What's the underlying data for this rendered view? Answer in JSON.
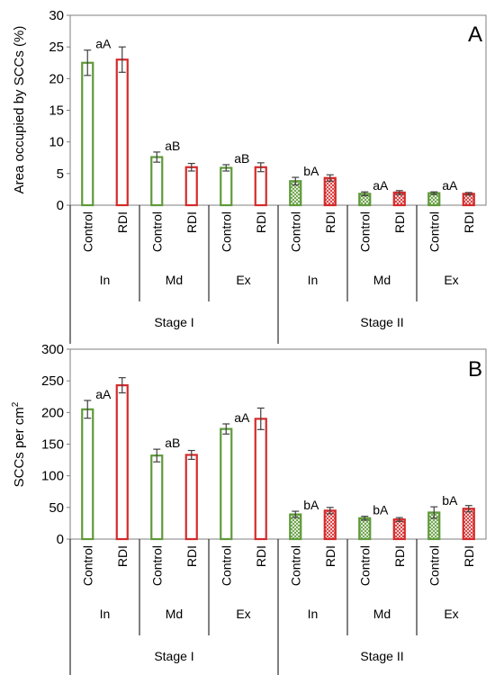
{
  "chart_data": [
    {
      "type": "bar",
      "panel_label": "A",
      "ylabel": "Area occupied by SCCs (%)",
      "ylim": [
        0,
        30
      ],
      "yticks": [
        0,
        5,
        10,
        15,
        20,
        25,
        30
      ],
      "categories": [
        "Control",
        "RDI",
        "Control",
        "RDI",
        "Control",
        "RDI",
        "Control",
        "RDI",
        "Control",
        "RDI",
        "Control",
        "RDI"
      ],
      "positions": [
        "In",
        "Md",
        "Ex",
        "In",
        "Md",
        "Ex"
      ],
      "stages": [
        "Stage I",
        "Stage II"
      ],
      "values": [
        22.5,
        23.0,
        7.6,
        6.0,
        5.9,
        6.0,
        3.8,
        4.3,
        1.8,
        2.0,
        1.9,
        1.8
      ],
      "errors": [
        2.0,
        2.0,
        0.8,
        0.6,
        0.5,
        0.7,
        0.6,
        0.5,
        0.3,
        0.3,
        0.2,
        0.2
      ],
      "annotations": [
        "aA",
        "",
        "aB",
        "",
        "aB",
        "",
        "bA",
        "",
        "aA",
        "",
        "aA",
        ""
      ],
      "treatment_colors": {
        "Control": "#5f9a3a",
        "RDI": "#d42a2a"
      },
      "stage_fill": {
        "Stage I": "open",
        "Stage II": "crosshatch"
      }
    },
    {
      "type": "bar",
      "panel_label": "B",
      "ylabel": "SCCs per cm",
      "ylabel_sup": "2",
      "ylim": [
        0,
        300
      ],
      "yticks": [
        0,
        50,
        100,
        150,
        200,
        250,
        300
      ],
      "categories": [
        "Control",
        "RDI",
        "Control",
        "RDI",
        "Control",
        "RDI",
        "Control",
        "RDI",
        "Control",
        "RDI",
        "Control",
        "RDI"
      ],
      "positions": [
        "In",
        "Md",
        "Ex",
        "In",
        "Md",
        "Ex"
      ],
      "stages": [
        "Stage I",
        "Stage II"
      ],
      "values": [
        205,
        243,
        132,
        133,
        174,
        190,
        39,
        45,
        33,
        31,
        42,
        48
      ],
      "errors": [
        14,
        12,
        10,
        7,
        8,
        17,
        5,
        5,
        3,
        3,
        9,
        5
      ],
      "annotations": [
        "aA",
        "",
        "aB",
        "",
        "aA",
        "",
        "bA",
        "",
        "bA",
        "",
        "bA",
        ""
      ],
      "treatment_colors": {
        "Control": "#5f9a3a",
        "RDI": "#d42a2a"
      },
      "stage_fill": {
        "Stage I": "open",
        "Stage II": "crosshatch"
      }
    }
  ]
}
